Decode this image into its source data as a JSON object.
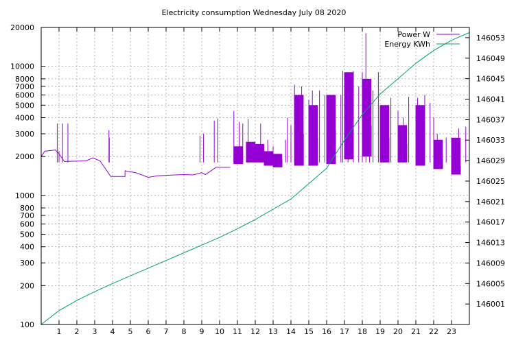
{
  "chart_data": {
    "type": "line",
    "title": "Electricity consumption Wednesday July 08 2020",
    "x_ticks": [
      1,
      2,
      3,
      4,
      5,
      6,
      7,
      8,
      9,
      10,
      11,
      12,
      13,
      14,
      15,
      16,
      17,
      18,
      19,
      20,
      21,
      22,
      23
    ],
    "xlim": [
      0,
      24
    ],
    "y_left": {
      "scale": "log",
      "lim": [
        100,
        20000
      ],
      "ticks": [
        100,
        200,
        300,
        400,
        500,
        600,
        700,
        800,
        1000,
        2000,
        3000,
        4000,
        5000,
        6000,
        7000,
        8000,
        10000,
        20000
      ]
    },
    "y_right": {
      "lim": [
        145997,
        146055
      ],
      "ticks": [
        146001,
        146005,
        146009,
        146013,
        146017,
        146021,
        146025,
        146029,
        146033,
        146037,
        146041,
        146045,
        146049,
        146053
      ]
    },
    "grid": true,
    "legend_position": "top-right",
    "series": [
      {
        "name": "Power W",
        "axis": "left",
        "color": "#9400d3",
        "baseline": [
          [
            0.0,
            2000
          ],
          [
            0.2,
            2200
          ],
          [
            0.8,
            2250
          ],
          [
            1.0,
            2100
          ],
          [
            1.3,
            1830
          ],
          [
            2.5,
            1850
          ],
          [
            2.9,
            1950
          ],
          [
            3.3,
            1850
          ],
          [
            3.9,
            1400
          ],
          [
            4.7,
            1400
          ],
          [
            4.7,
            1550
          ],
          [
            5.3,
            1500
          ],
          [
            5.6,
            1450
          ],
          [
            6.0,
            1380
          ],
          [
            6.5,
            1420
          ],
          [
            7.5,
            1440
          ],
          [
            8.0,
            1450
          ],
          [
            8.5,
            1440
          ],
          [
            9.0,
            1500
          ],
          [
            9.2,
            1450
          ],
          [
            9.8,
            1650
          ],
          [
            10.6,
            1650
          ]
        ],
        "spikes": [
          [
            0.9,
            3600
          ],
          [
            1.0,
            2200
          ],
          [
            1.2,
            3600
          ],
          [
            1.5,
            3600
          ],
          [
            3.8,
            3200
          ],
          [
            3.82,
            2800
          ],
          [
            8.9,
            2900
          ],
          [
            9.1,
            3000
          ],
          [
            9.7,
            3800
          ],
          [
            9.9,
            3950
          ],
          [
            10.8,
            4500
          ],
          [
            11.1,
            3700
          ],
          [
            11.3,
            3600
          ],
          [
            11.6,
            3900
          ],
          [
            12.3,
            3600
          ],
          [
            12.7,
            2700
          ],
          [
            13.0,
            2400
          ],
          [
            13.7,
            2700
          ],
          [
            13.8,
            4000
          ],
          [
            14.0,
            3500
          ],
          [
            14.2,
            7200
          ],
          [
            14.6,
            7000
          ],
          [
            15.0,
            5500
          ],
          [
            15.2,
            6500
          ],
          [
            15.6,
            6500
          ],
          [
            15.9,
            6000
          ],
          [
            16.2,
            6000
          ],
          [
            16.8,
            6000
          ],
          [
            16.9,
            9200
          ],
          [
            17.2,
            9000
          ],
          [
            17.5,
            9200
          ],
          [
            17.8,
            7000
          ],
          [
            18.0,
            9000
          ],
          [
            18.2,
            18000
          ],
          [
            18.4,
            7500
          ],
          [
            18.6,
            6500
          ],
          [
            18.9,
            9000
          ],
          [
            19.2,
            4300
          ],
          [
            19.6,
            5700
          ],
          [
            20.0,
            4500
          ],
          [
            20.3,
            4000
          ],
          [
            20.6,
            5800
          ],
          [
            21.1,
            5700
          ],
          [
            21.5,
            6000
          ],
          [
            21.8,
            5200
          ],
          [
            22.0,
            4000
          ],
          [
            22.2,
            3000
          ],
          [
            22.7,
            2800
          ],
          [
            23.4,
            3300
          ],
          [
            23.8,
            3400
          ]
        ],
        "hi_segments": [
          [
            10.8,
            2200,
            2400
          ],
          [
            11.5,
            2300,
            2600
          ],
          [
            12.0,
            2100,
            2500
          ],
          [
            12.5,
            2000,
            2200
          ],
          [
            13.0,
            1900,
            2100
          ],
          [
            14.2,
            3000,
            6000
          ],
          [
            15.0,
            2800,
            5000
          ],
          [
            16.0,
            3200,
            6000
          ],
          [
            17.0,
            3000,
            9000
          ],
          [
            18.0,
            3500,
            8000
          ],
          [
            19.0,
            2800,
            5000
          ],
          [
            20.0,
            2500,
            3500
          ],
          [
            21.0,
            2500,
            5000
          ],
          [
            22.0,
            1900,
            2700
          ],
          [
            23.0,
            1700,
            2800
          ]
        ],
        "lo_segments": [
          [
            10.8,
            1750
          ],
          [
            11.5,
            1800
          ],
          [
            12.0,
            1800
          ],
          [
            12.5,
            1700
          ],
          [
            13.0,
            1650
          ],
          [
            14.2,
            1700
          ],
          [
            15.0,
            1700
          ],
          [
            16.0,
            1750
          ],
          [
            17.0,
            1900
          ],
          [
            18.0,
            2000
          ],
          [
            19.0,
            1800
          ],
          [
            20.0,
            1800
          ],
          [
            21.0,
            1700
          ],
          [
            22.0,
            1600
          ],
          [
            23.0,
            1450
          ]
        ]
      },
      {
        "name": "Energy KWh",
        "axis": "right",
        "color": "#009e73",
        "points": [
          [
            0.0,
            145997
          ],
          [
            1.0,
            145999.7
          ],
          [
            2.0,
            146001.7
          ],
          [
            3.0,
            146003.4
          ],
          [
            4.0,
            146005
          ],
          [
            5.0,
            146006.5
          ],
          [
            6.0,
            146008
          ],
          [
            7.0,
            146009.5
          ],
          [
            8.0,
            146011
          ],
          [
            9.0,
            146012.5
          ],
          [
            10.0,
            146014
          ],
          [
            11.0,
            146015.7
          ],
          [
            12.0,
            146017.5
          ],
          [
            13.0,
            146019.5
          ],
          [
            14.0,
            146021.5
          ],
          [
            15.0,
            146024.5
          ],
          [
            16.0,
            146027.5
          ],
          [
            17.0,
            146033
          ],
          [
            18.0,
            146038
          ],
          [
            19.0,
            146042
          ],
          [
            20.0,
            146045
          ],
          [
            21.0,
            146048
          ],
          [
            22.0,
            146050.5
          ],
          [
            23.0,
            146052.5
          ],
          [
            24.0,
            146054
          ]
        ]
      }
    ]
  }
}
